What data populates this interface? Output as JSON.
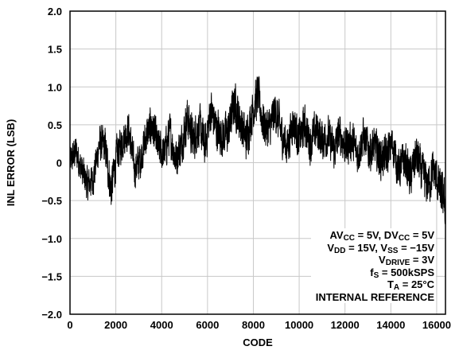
{
  "chart_data": {
    "type": "line",
    "title": "",
    "xlabel": "CODE",
    "ylabel": "INL ERROR (LSB)",
    "xlim": [
      0,
      16384
    ],
    "ylim": [
      -2.0,
      2.0
    ],
    "x_ticks": [
      0,
      2000,
      4000,
      6000,
      8000,
      10000,
      12000,
      14000,
      16000
    ],
    "y_ticks": [
      2.0,
      1.5,
      1.0,
      0.5,
      0,
      -0.5,
      -1.0,
      -1.5,
      -2.0
    ],
    "x_tick_labels": [
      "0",
      "2000",
      "4000",
      "6000",
      "8000",
      "10000",
      "12000",
      "14000",
      "16000"
    ],
    "y_tick_labels": [
      "2.0",
      "1.5",
      "1.0",
      "0.5",
      "0",
      "−0.5",
      "−1.0",
      "−1.5",
      "−2.0"
    ],
    "grid": true,
    "series": [
      {
        "color": "#000000",
        "x": [
          0,
          256,
          512,
          768,
          1024,
          1280,
          1536,
          1792,
          2048,
          2304,
          2560,
          2816,
          3072,
          3328,
          3584,
          3840,
          4096,
          4352,
          4608,
          4864,
          5120,
          5376,
          5632,
          5888,
          6144,
          6400,
          6656,
          6912,
          7168,
          7424,
          7680,
          7936,
          8192,
          8448,
          8704,
          8960,
          9216,
          9472,
          9728,
          9984,
          10240,
          10496,
          10752,
          11008,
          11264,
          11520,
          11776,
          12032,
          12288,
          12544,
          12800,
          13056,
          13312,
          13568,
          13824,
          14080,
          14336,
          14592,
          14848,
          15104,
          15360,
          15616,
          15872,
          16128,
          16383
        ],
        "y": [
          0.0,
          0.15,
          -0.1,
          -0.3,
          -0.2,
          0.25,
          0.2,
          -0.35,
          0.1,
          0.3,
          0.45,
          -0.1,
          0.05,
          0.35,
          0.5,
          0.2,
          0.1,
          0.4,
          0.05,
          0.25,
          0.6,
          0.3,
          0.5,
          0.2,
          0.7,
          0.45,
          0.35,
          0.4,
          0.8,
          0.55,
          0.3,
          0.65,
          0.9,
          0.5,
          0.45,
          0.7,
          0.4,
          0.2,
          0.55,
          0.3,
          0.5,
          0.25,
          0.45,
          0.3,
          0.35,
          0.15,
          0.4,
          0.2,
          0.3,
          0.1,
          0.35,
          0.15,
          0.2,
          0.05,
          0.1,
          0.25,
          -0.1,
          0.05,
          -0.2,
          0.1,
          -0.15,
          -0.3,
          -0.1,
          -0.35,
          -0.55
        ],
        "amplitude": [
          0.28,
          0.3,
          0.3,
          0.3,
          0.3,
          0.32,
          0.35,
          0.38,
          0.35,
          0.32,
          0.33,
          0.33,
          0.34,
          0.35,
          0.36,
          0.35,
          0.36,
          0.36,
          0.36,
          0.36,
          0.38,
          0.38,
          0.38,
          0.38,
          0.4,
          0.38,
          0.38,
          0.38,
          0.4,
          0.38,
          0.38,
          0.38,
          0.4,
          0.38,
          0.38,
          0.38,
          0.38,
          0.36,
          0.36,
          0.36,
          0.36,
          0.36,
          0.36,
          0.36,
          0.35,
          0.35,
          0.35,
          0.35,
          0.35,
          0.35,
          0.35,
          0.35,
          0.35,
          0.35,
          0.36,
          0.36,
          0.36,
          0.36,
          0.36,
          0.38,
          0.38,
          0.38,
          0.38,
          0.38,
          0.4
        ]
      }
    ]
  },
  "annotation": {
    "line1": {
      "a": "AV",
      "a_sub": "CC",
      "b": " = 5V, DV",
      "b_sub": "CC",
      "c": " = 5V"
    },
    "line2": {
      "a": "V",
      "a_sub": "DD",
      "b": " = 15V, V",
      "b_sub": "SS",
      "c": " = −15V"
    },
    "line3": {
      "a": "V",
      "a_sub": "DRIVE",
      "b": " = 3V"
    },
    "line4": {
      "a": "f",
      "a_sub": "S",
      "b": " = 500kSPS"
    },
    "line5": {
      "a": "T",
      "a_sub": "A",
      "b": " = 25°C"
    },
    "line6": "INTERNAL REFERENCE"
  }
}
